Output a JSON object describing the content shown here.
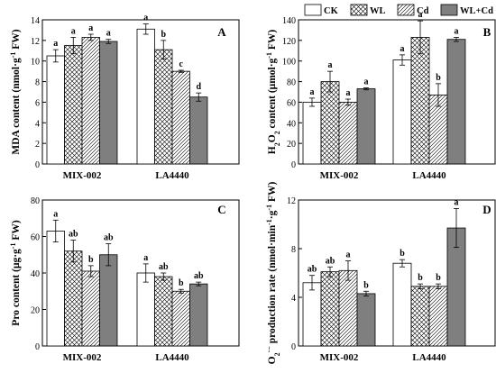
{
  "legend": {
    "placement": "top-right",
    "entries": [
      {
        "name": "CK",
        "pattern": "white"
      },
      {
        "name": "WL",
        "pattern": "crosshatch"
      },
      {
        "name": "Cd",
        "pattern": "diagonal"
      },
      {
        "name": "WL+Cd",
        "pattern": "gray"
      }
    ]
  },
  "colors": {
    "bar_fill_gray": "#7f7f7f",
    "stroke": "#000000"
  },
  "chart_data": [
    {
      "panel": "A",
      "type": "bar",
      "ylabel_parts": [
        "MDA content (nmol·g",
        "-1",
        " FW)"
      ],
      "ylim": [
        0,
        14
      ],
      "yticks": [
        0,
        2,
        4,
        6,
        8,
        10,
        12,
        14
      ],
      "categories": [
        "MIX-002",
        "LA4440"
      ],
      "series": [
        {
          "name": "CK",
          "values": [
            10.5,
            13.1
          ],
          "errors": [
            0.6,
            0.5
          ],
          "letters": [
            "a",
            "a"
          ]
        },
        {
          "name": "WL",
          "values": [
            11.5,
            11.1
          ],
          "errors": [
            0.8,
            0.9
          ],
          "letters": [
            "a",
            "b"
          ]
        },
        {
          "name": "Cd",
          "values": [
            12.3,
            9.0
          ],
          "errors": [
            0.3,
            0.1
          ],
          "letters": [
            "a",
            "c"
          ]
        },
        {
          "name": "WL+Cd",
          "values": [
            11.9,
            6.5
          ],
          "errors": [
            0.2,
            0.4
          ],
          "letters": [
            "a",
            "d"
          ]
        }
      ],
      "grid": false
    },
    {
      "panel": "B",
      "type": "bar",
      "ylabel_parts": [
        "H",
        "2",
        "O",
        "2",
        " content (μmol·g",
        "-1",
        " FW)"
      ],
      "ylim": [
        0,
        140
      ],
      "yticks": [
        0,
        20,
        40,
        60,
        80,
        100,
        120,
        140
      ],
      "categories": [
        "MIX-002",
        "LA4440"
      ],
      "series": [
        {
          "name": "CK",
          "values": [
            60,
            101
          ],
          "errors": [
            4,
            5
          ],
          "letters": [
            "a",
            "a"
          ]
        },
        {
          "name": "WL",
          "values": [
            80,
            123
          ],
          "errors": [
            10,
            16
          ],
          "letters": [
            "a",
            "a"
          ]
        },
        {
          "name": "Cd",
          "values": [
            60,
            67
          ],
          "errors": [
            3,
            11
          ],
          "letters": [
            "a",
            "b"
          ]
        },
        {
          "name": "WL+Cd",
          "values": [
            73,
            121
          ],
          "errors": [
            1,
            2
          ],
          "letters": [
            "a",
            "a"
          ]
        }
      ],
      "grid": false
    },
    {
      "panel": "C",
      "type": "bar",
      "ylabel_parts": [
        "Pro content (μg·g",
        "-1",
        " FW)"
      ],
      "ylim": [
        0,
        80
      ],
      "yticks": [
        0,
        20,
        40,
        60,
        80
      ],
      "categories": [
        "MIX-002",
        "LA4440"
      ],
      "series": [
        {
          "name": "CK",
          "values": [
            63,
            40
          ],
          "errors": [
            6,
            5
          ],
          "letters": [
            "a",
            "a"
          ]
        },
        {
          "name": "WL",
          "values": [
            52,
            38
          ],
          "errors": [
            6,
            2
          ],
          "letters": [
            "ab",
            "ab"
          ]
        },
        {
          "name": "Cd",
          "values": [
            41,
            30
          ],
          "errors": [
            3,
            1
          ],
          "letters": [
            "b",
            "b"
          ]
        },
        {
          "name": "WL+Cd",
          "values": [
            50,
            34
          ],
          "errors": [
            6,
            1
          ],
          "letters": [
            "ab",
            "ab"
          ]
        }
      ],
      "grid": false
    },
    {
      "panel": "D",
      "type": "bar",
      "ylabel_parts": [
        "O",
        "2",
        "·−",
        " production rate (nmol·min",
        "-1",
        "·g",
        "-1",
        " FW)"
      ],
      "ylim": [
        0,
        12
      ],
      "yticks": [
        0,
        4,
        8,
        12
      ],
      "categories": [
        "MIX-002",
        "LA4440"
      ],
      "series": [
        {
          "name": "CK",
          "values": [
            5.2,
            6.8
          ],
          "errors": [
            0.6,
            0.3
          ],
          "letters": [
            "ab",
            "b"
          ]
        },
        {
          "name": "WL",
          "values": [
            6.1,
            4.9
          ],
          "errors": [
            0.4,
            0.2
          ],
          "letters": [
            "ab",
            "b"
          ]
        },
        {
          "name": "Cd",
          "values": [
            6.2,
            4.9
          ],
          "errors": [
            0.8,
            0.2
          ],
          "letters": [
            "a",
            "b"
          ]
        },
        {
          "name": "WL+Cd",
          "values": [
            4.3,
            9.7
          ],
          "errors": [
            0.2,
            1.6
          ],
          "letters": [
            "b",
            "a"
          ]
        }
      ],
      "grid": false
    }
  ]
}
